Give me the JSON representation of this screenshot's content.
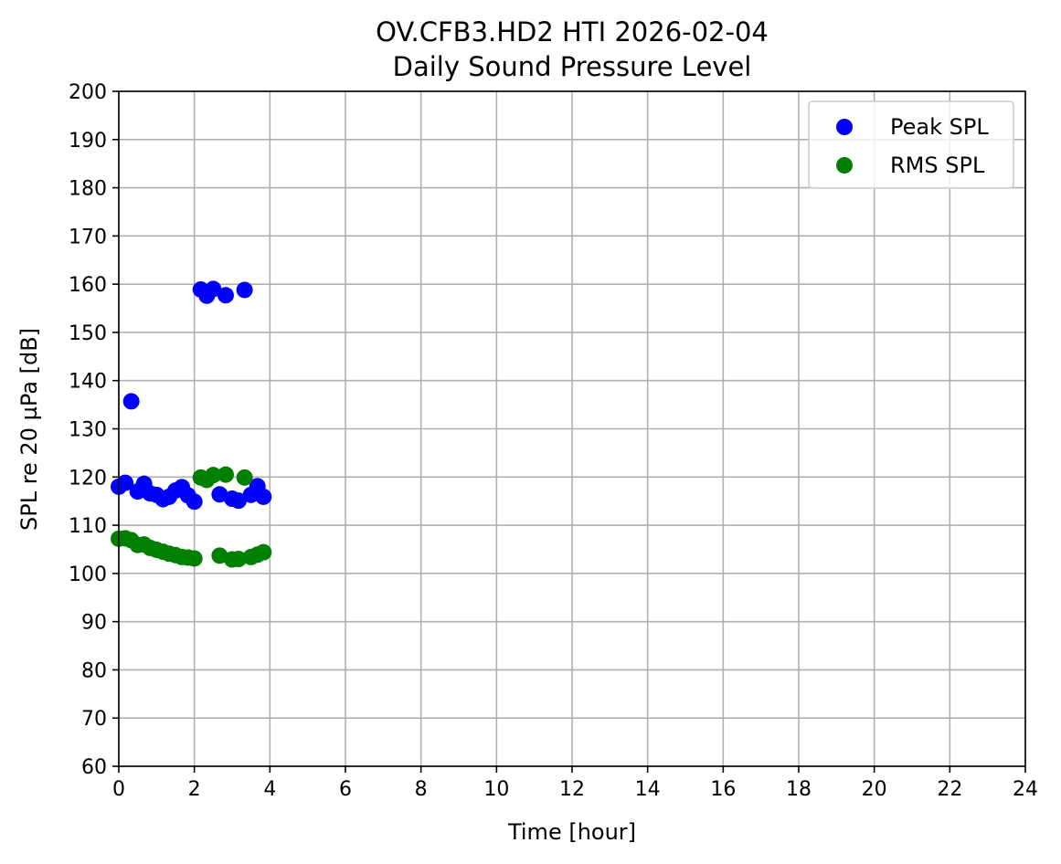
{
  "chart_data": {
    "type": "scatter",
    "title": "OV.CFB3.HD2 HTI 2026-02-04",
    "subtitle": "Daily Sound Pressure Level",
    "xlabel": "Time [hour]",
    "ylabel": "SPL re 20 µPa [dB]",
    "xlim": [
      0,
      24
    ],
    "ylim": [
      60,
      200
    ],
    "xticks": [
      0,
      2,
      4,
      6,
      8,
      10,
      12,
      14,
      16,
      18,
      20,
      22,
      24
    ],
    "yticks": [
      60,
      70,
      80,
      90,
      100,
      110,
      120,
      130,
      140,
      150,
      160,
      170,
      180,
      190,
      200
    ],
    "grid": true,
    "legend_position": "top-right",
    "series": [
      {
        "name": "Peak SPL",
        "color": "#0000ff",
        "x": [
          0.0,
          0.17,
          0.33,
          0.5,
          0.67,
          0.83,
          1.0,
          1.17,
          1.33,
          1.5,
          1.67,
          1.83,
          2.0,
          2.17,
          2.33,
          2.5,
          2.67,
          2.83,
          3.0,
          3.17,
          3.33,
          3.5,
          3.67,
          3.83
        ],
        "y": [
          118.0,
          118.8,
          135.7,
          117.0,
          118.6,
          116.6,
          116.3,
          115.4,
          115.9,
          117.2,
          117.9,
          116.2,
          114.9,
          158.9,
          157.6,
          159.0,
          116.4,
          157.7,
          115.5,
          115.1,
          158.8,
          116.3,
          118.1,
          115.9
        ]
      },
      {
        "name": "RMS SPL",
        "color": "#008000",
        "x": [
          0.0,
          0.17,
          0.33,
          0.5,
          0.67,
          0.83,
          1.0,
          1.17,
          1.33,
          1.5,
          1.67,
          1.83,
          2.0,
          2.17,
          2.33,
          2.5,
          2.67,
          2.83,
          3.0,
          3.17,
          3.33,
          3.5,
          3.67,
          3.83
        ],
        "y": [
          107.2,
          107.3,
          106.9,
          105.9,
          106.0,
          105.3,
          104.9,
          104.5,
          104.1,
          103.8,
          103.4,
          103.3,
          103.1,
          119.9,
          119.4,
          120.4,
          103.7,
          120.5,
          102.9,
          103.0,
          119.9,
          103.4,
          103.9,
          104.4
        ]
      }
    ]
  }
}
